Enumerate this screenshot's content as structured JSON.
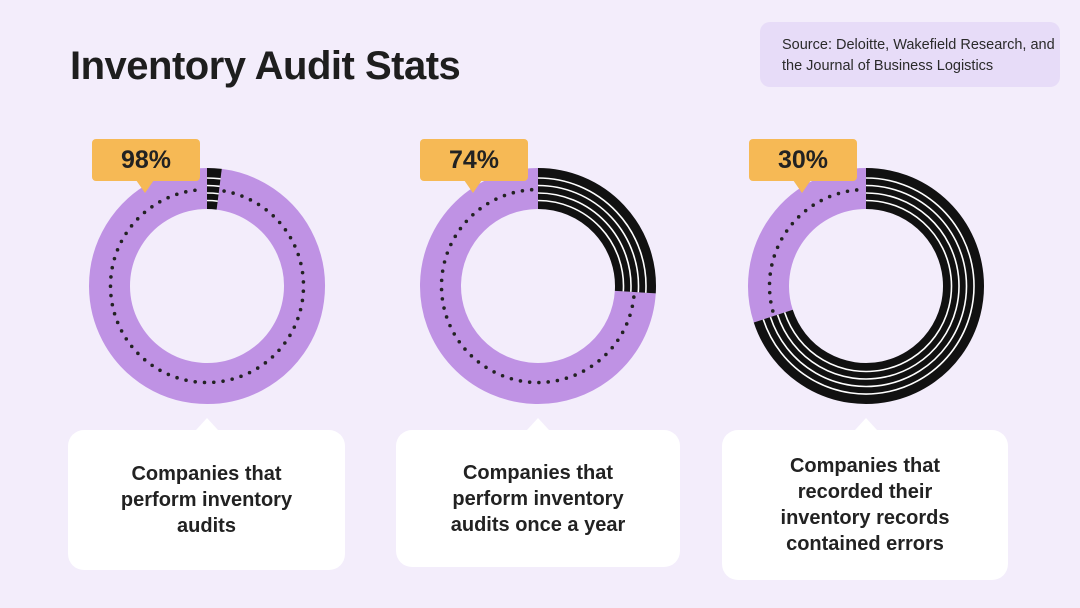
{
  "title": "Inventory Audit Stats",
  "source": "Source: Deloitte, Wakefield Research, and the Journal of Business Logistics",
  "colors": {
    "background": "#f3edfb",
    "share": "#bf92e4",
    "remainder": "#111111",
    "badge": "#f6b955",
    "card": "#ffffff"
  },
  "chart_data": [
    {
      "type": "pie",
      "style": "donut",
      "value": 98,
      "label": "98%",
      "description": "Companies that perform inventory audits"
    },
    {
      "type": "pie",
      "style": "donut",
      "value": 74,
      "label": "74%",
      "description": "Companies that perform inventory audits once a year"
    },
    {
      "type": "pie",
      "style": "donut",
      "value": 30,
      "label": "30%",
      "description": "Companies that recorded their inventory records contained errors"
    }
  ]
}
